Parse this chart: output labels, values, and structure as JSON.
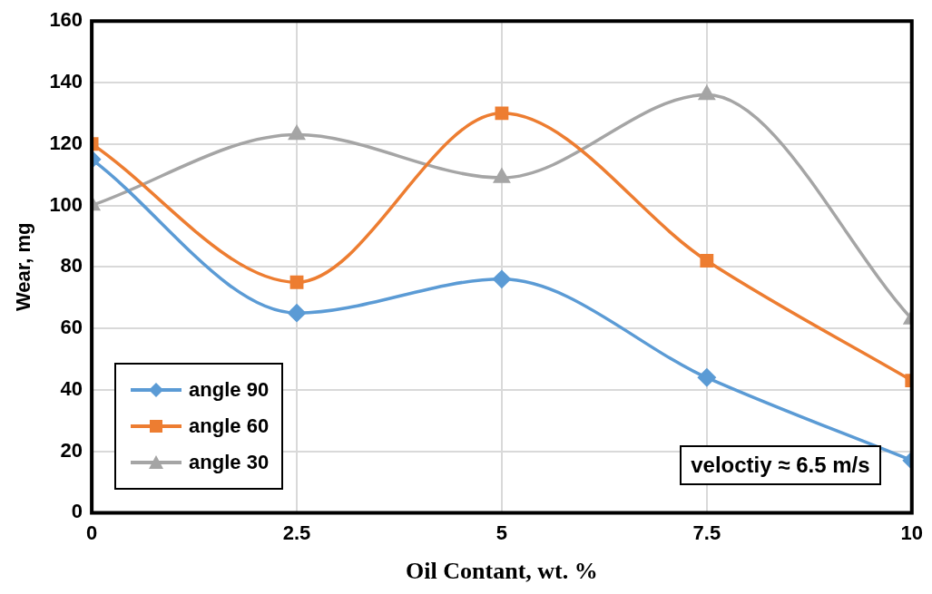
{
  "chart_data": {
    "type": "line",
    "xlabel": "Oil Contant, wt. %",
    "ylabel": "Wear, mg",
    "x": [
      0,
      2.5,
      5,
      7.5,
      10
    ],
    "series": [
      {
        "name": "angle 90",
        "color": "#5b9bd5",
        "marker": "diamond",
        "values": [
          115,
          65,
          76,
          44,
          17
        ]
      },
      {
        "name": "angle 60",
        "color": "#ed7d31",
        "marker": "square",
        "values": [
          120,
          75,
          130,
          82,
          43
        ]
      },
      {
        "name": "angle 30",
        "color": "#a5a5a5",
        "marker": "triangle",
        "values": [
          100,
          123,
          109,
          136,
          63
        ]
      }
    ],
    "xlim": [
      0,
      10
    ],
    "xticks": [
      0,
      2.5,
      5,
      7.5,
      10
    ],
    "ylim": [
      0,
      160
    ],
    "yticks": [
      0,
      20,
      40,
      60,
      80,
      100,
      120,
      140,
      160
    ],
    "grid": true,
    "legend": "bottom left",
    "annotations": [
      "veloctiy ≈ 6.5 m/s"
    ]
  }
}
